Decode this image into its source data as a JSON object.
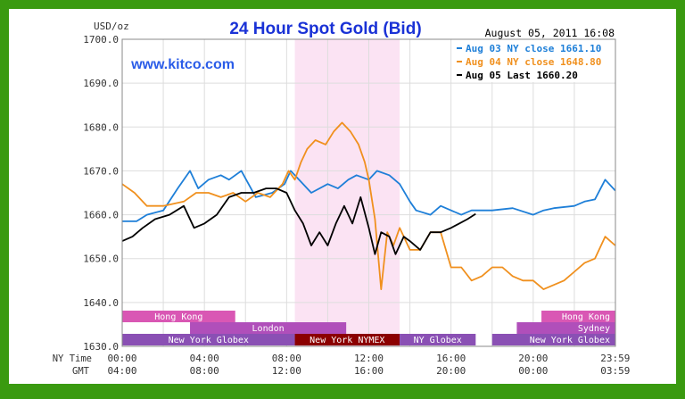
{
  "top_strip_text": "",
  "chart_data": {
    "type": "line",
    "title": "24 Hour Spot Gold (Bid)",
    "watermark": "www.kitco.com",
    "timestamp": "August 05, 2011 16:08",
    "unit_label": "USD/oz",
    "ylim": [
      1630,
      1700
    ],
    "y_ticks": [
      "1700.0",
      "1690.0",
      "1680.0",
      "1670.0",
      "1660.0",
      "1650.0",
      "1640.0",
      "1630.0"
    ],
    "x_row_labels": [
      "NY Time",
      "GMT"
    ],
    "x_ticks_ny": [
      "00:00",
      "04:00",
      "08:00",
      "12:00",
      "16:00",
      "20:00",
      "23:59"
    ],
    "x_ticks_gmt": [
      "04:00",
      "08:00",
      "12:00",
      "16:00",
      "20:00",
      "00:00",
      "03:59"
    ],
    "grid": true,
    "legend": "top-right",
    "highlight_band_hours": [
      8.4,
      13.5
    ],
    "sessions": [
      {
        "label": "Hong Kong",
        "start": 0,
        "end": 5.5,
        "row": 0,
        "color": "#d957b4"
      },
      {
        "label": "Hong Kong",
        "start": 20.4,
        "end": 24,
        "row": 0,
        "color": "#d957b4"
      },
      {
        "label": "London",
        "start": 3.3,
        "end": 10.9,
        "row": 1,
        "color": "#b04fba"
      },
      {
        "label": "Sydney",
        "start": 19.2,
        "end": 24,
        "row": 1,
        "color": "#b04fba"
      },
      {
        "label": "New York Globex",
        "start": 0,
        "end": 8.4,
        "row": 2,
        "color": "#8a50b4"
      },
      {
        "label": "New York NYMEX",
        "start": 8.4,
        "end": 13.5,
        "row": 2,
        "color": "#8b0000"
      },
      {
        "label": "NY Globex",
        "start": 13.5,
        "end": 17.2,
        "row": 2,
        "color": "#8a50b4"
      },
      {
        "label": "New York Globex",
        "start": 18,
        "end": 24,
        "row": 2,
        "color": "#8a50b4"
      }
    ],
    "series": [
      {
        "name": "Aug 03 NY close 1661.10",
        "color": "#1e7fd8",
        "x": [
          0,
          0.7,
          1.2,
          2,
          2.7,
          3.3,
          3.7,
          4.2,
          4.8,
          5.2,
          5.8,
          6.5,
          7.3,
          7.9,
          8.2,
          8.6,
          9.2,
          10,
          10.5,
          11,
          11.4,
          12,
          12.4,
          13,
          13.5,
          14,
          14.3,
          15,
          15.5,
          16,
          16.5,
          17,
          18,
          19,
          20,
          20.5,
          21,
          22,
          22.5,
          23,
          23.5,
          23.99
        ],
        "values": [
          1658.5,
          1658.5,
          1660,
          1661,
          1666,
          1670,
          1666,
          1668,
          1669,
          1668,
          1670,
          1664,
          1665,
          1667,
          1670,
          1668,
          1665,
          1667,
          1666,
          1668,
          1669,
          1668,
          1670,
          1669,
          1667,
          1663,
          1661,
          1660,
          1662,
          1661,
          1660,
          1661,
          1661,
          1661.5,
          1660,
          1661,
          1661.5,
          1662,
          1663,
          1663.5,
          1668,
          1665.5
        ]
      },
      {
        "name": "Aug 04 NY close 1648.80",
        "color": "#f0901e",
        "x": [
          0,
          0.6,
          1.2,
          2,
          3,
          3.6,
          4.2,
          4.8,
          5.4,
          6,
          6.6,
          7.2,
          7.8,
          8.1,
          8.4,
          8.7,
          9,
          9.4,
          9.9,
          10.3,
          10.7,
          11.1,
          11.5,
          11.8,
          12,
          12.3,
          12.6,
          12.9,
          13.2,
          13.5,
          14,
          14.5,
          15,
          15.5,
          16,
          16.5,
          17,
          17.5,
          18,
          18.5,
          19,
          19.5,
          20,
          20.5,
          21,
          21.5,
          22,
          22.5,
          23,
          23.5,
          23.99
        ],
        "values": [
          1667,
          1665,
          1662,
          1662,
          1663,
          1665,
          1665,
          1664,
          1665,
          1663,
          1665,
          1664,
          1667,
          1670,
          1668,
          1672,
          1675,
          1677,
          1676,
          1679,
          1681,
          1679,
          1676,
          1672,
          1668,
          1659,
          1643,
          1656,
          1653,
          1657,
          1652,
          1652,
          1656,
          1656,
          1648,
          1648,
          1645,
          1646,
          1648,
          1648,
          1646,
          1645,
          1645,
          1643,
          1644,
          1645,
          1647,
          1649,
          1650,
          1655,
          1653
        ]
      },
      {
        "name": "Aug 05 Last 1660.20",
        "color": "#000000",
        "x": [
          0,
          0.5,
          1,
          1.6,
          2.3,
          3,
          3.5,
          4,
          4.6,
          5.2,
          5.8,
          6.4,
          7,
          7.5,
          8,
          8.4,
          8.8,
          9.2,
          9.6,
          10,
          10.4,
          10.8,
          11.2,
          11.6,
          12,
          12.3,
          12.6,
          13,
          13.3,
          13.7,
          14,
          14.5,
          15,
          15.5,
          16,
          16.4,
          16.8,
          17.2
        ],
        "values": [
          1654,
          1655,
          1657,
          1659,
          1660,
          1662,
          1657,
          1658,
          1660,
          1664,
          1665,
          1665,
          1666,
          1666,
          1665,
          1661,
          1658,
          1653,
          1656,
          1653,
          1658,
          1662,
          1658,
          1664,
          1657,
          1651,
          1656,
          1655,
          1651,
          1655,
          1654,
          1652,
          1656,
          1656,
          1657,
          1658,
          1659,
          1660.2
        ]
      }
    ]
  }
}
